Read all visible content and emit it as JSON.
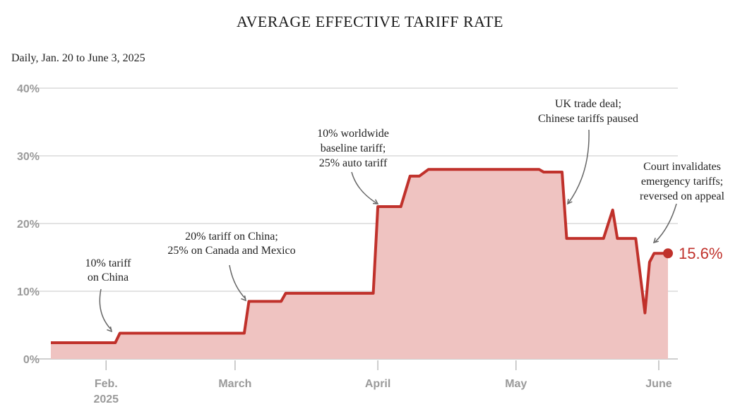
{
  "chart_data": {
    "type": "area",
    "title": "AVERAGE EFFECTIVE TARIFF RATE",
    "subtitle": "Daily, Jan. 20 to June 3, 2025",
    "ylim": [
      0,
      40
    ],
    "y_ticks": [
      "0%",
      "10%",
      "20%",
      "30%",
      "40%"
    ],
    "x_ticks": [
      {
        "line1": "Feb.",
        "line2": "2025",
        "date": "2025-02-01"
      },
      {
        "line1": "March",
        "line2": "",
        "date": "2025-03-01"
      },
      {
        "line1": "April",
        "line2": "",
        "date": "2025-04-01"
      },
      {
        "line1": "May",
        "line2": "",
        "date": "2025-05-01"
      },
      {
        "line1": "June",
        "line2": "",
        "date": "2025-06-01"
      }
    ],
    "xlim": [
      "2025-01-20",
      "2025-06-03"
    ],
    "grid": true,
    "colors": {
      "line": "#c0312b",
      "fill": "#efc3c1",
      "grid": "#e3e3e3",
      "annotation_arrow": "#666666"
    },
    "series": [
      {
        "name": "",
        "points": [
          {
            "date": "2025-01-20",
            "value": 2.4
          },
          {
            "date": "2025-02-03",
            "value": 2.4
          },
          {
            "date": "2025-02-04",
            "value": 3.8
          },
          {
            "date": "2025-03-03",
            "value": 3.8
          },
          {
            "date": "2025-03-04",
            "value": 8.5
          },
          {
            "date": "2025-03-11",
            "value": 8.5
          },
          {
            "date": "2025-03-12",
            "value": 9.7
          },
          {
            "date": "2025-03-31",
            "value": 9.7
          },
          {
            "date": "2025-04-01",
            "value": 22.5
          },
          {
            "date": "2025-04-06",
            "value": 22.5
          },
          {
            "date": "2025-04-08",
            "value": 27.0
          },
          {
            "date": "2025-04-10",
            "value": 27.0
          },
          {
            "date": "2025-04-12",
            "value": 28.0
          },
          {
            "date": "2025-05-06",
            "value": 28.0
          },
          {
            "date": "2025-05-07",
            "value": 27.6
          },
          {
            "date": "2025-05-11",
            "value": 27.6
          },
          {
            "date": "2025-05-12",
            "value": 17.8
          },
          {
            "date": "2025-05-20",
            "value": 17.8
          },
          {
            "date": "2025-05-22",
            "value": 22.0
          },
          {
            "date": "2025-05-23",
            "value": 17.8
          },
          {
            "date": "2025-05-27",
            "value": 17.8
          },
          {
            "date": "2025-05-29",
            "value": 6.8
          },
          {
            "date": "2025-05-30",
            "value": 14.3
          },
          {
            "date": "2025-05-31",
            "value": 15.6
          },
          {
            "date": "2025-06-03",
            "value": 15.6
          }
        ]
      }
    ],
    "end_value_label": "15.6%",
    "annotations": [
      {
        "lines": [
          "10% tariff",
          "on China"
        ],
        "date": "2025-02-04"
      },
      {
        "lines": [
          "20% tariff on China;",
          "25% on Canada and Mexico"
        ],
        "date": "2025-03-04"
      },
      {
        "lines": [
          "10% worldwide",
          "baseline tariff;",
          "25% auto tariff"
        ],
        "date": "2025-04-01"
      },
      {
        "lines": [
          "UK trade deal;",
          "Chinese tariffs paused"
        ],
        "date": "2025-05-12"
      },
      {
        "lines": [
          "Court invalidates",
          "emergency tariffs;",
          "reversed on appeal"
        ],
        "date": "2025-05-30"
      }
    ]
  }
}
